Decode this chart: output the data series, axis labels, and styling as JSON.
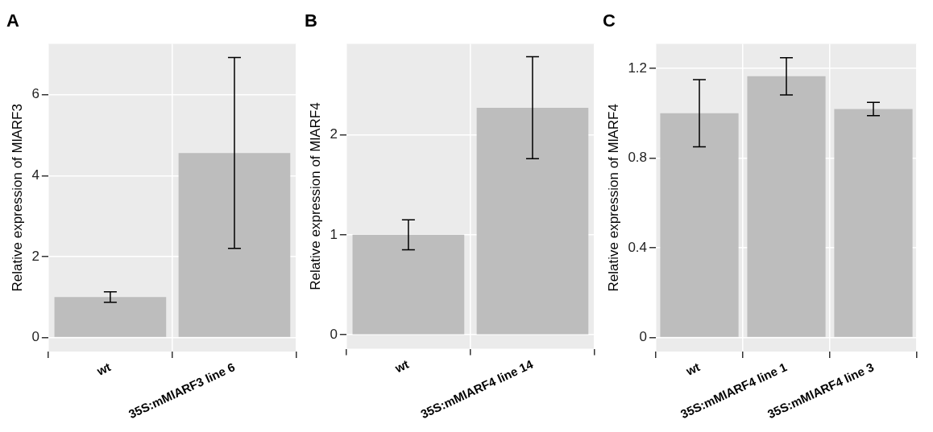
{
  "chart_data": [
    {
      "type": "bar",
      "title": "A",
      "ylabel": "Relative expression of MlARF3",
      "categories": [
        "wt",
        "35S:mMlARF3 line 6"
      ],
      "values": [
        1.0,
        4.56
      ],
      "errors": [
        0.13,
        2.36
      ],
      "color": "#bdbdbd",
      "ylim": [
        -0.35,
        7.26
      ],
      "yticks": [
        0,
        2,
        4,
        6
      ],
      "grid": true
    },
    {
      "type": "bar",
      "title": "B",
      "ylabel": "Relative expression of MlARF4",
      "categories": [
        "wt",
        "35S:mMlARF4 line 14"
      ],
      "values": [
        1.0,
        2.27
      ],
      "errors": [
        0.15,
        0.51
      ],
      "color": "#bdbdbd",
      "ylim": [
        -0.14,
        2.91
      ],
      "yticks": [
        0,
        1,
        2
      ],
      "grid": true
    },
    {
      "type": "bar",
      "title": "C",
      "ylabel": "Relative expression of MlARF4",
      "categories": [
        "wt",
        "35S:mMlARF4 line 1",
        "35S:mMlARF4 line 3"
      ],
      "values": [
        1.0,
        1.165,
        1.019
      ],
      "errors": [
        0.15,
        0.083,
        0.03
      ],
      "color": "#bdbdbd",
      "ylim": [
        -0.063,
        1.31
      ],
      "yticks": [
        0,
        0.4,
        0.8,
        1.2
      ],
      "grid": true
    }
  ]
}
